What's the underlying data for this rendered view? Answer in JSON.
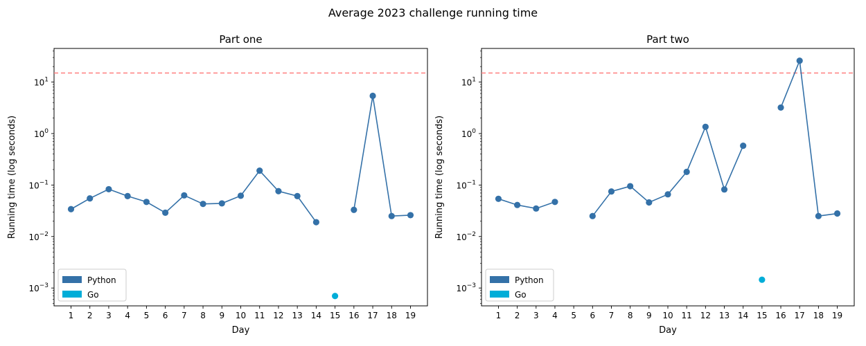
{
  "figure": {
    "title": "Average 2023 challenge running time"
  },
  "chart_data": [
    {
      "type": "line",
      "title": "Part one",
      "xlabel": "Day",
      "ylabel": "Running time (log seconds)",
      "yscale": "log",
      "ylim": [
        0.00045,
        45
      ],
      "yticks": [
        0.001,
        0.01,
        0.1,
        1,
        10
      ],
      "ytick_labels": [
        [
          "10",
          "−3"
        ],
        [
          "10",
          "−2"
        ],
        [
          "10",
          "−1"
        ],
        [
          "10",
          "0"
        ],
        [
          "10",
          "1"
        ]
      ],
      "categories": [
        "1",
        "2",
        "3",
        "4",
        "5",
        "6",
        "7",
        "8",
        "9",
        "10",
        "11",
        "12",
        "13",
        "14",
        "15",
        "16",
        "17",
        "18",
        "19"
      ],
      "reference_line": {
        "y": 15,
        "color": "#ff7f7f",
        "style": "dashed"
      },
      "legend": {
        "placement": "lower-left",
        "entries": [
          "Python",
          "Go"
        ]
      },
      "series": [
        {
          "name": "Python",
          "color": "#3471a8",
          "values": [
            0.034,
            0.055,
            0.083,
            0.061,
            0.047,
            0.029,
            0.063,
            0.043,
            0.044,
            0.062,
            0.19,
            0.076,
            0.061,
            0.019,
            null,
            0.033,
            5.4,
            0.025,
            0.026
          ]
        },
        {
          "name": "Go",
          "color": "#00add8",
          "values": [
            null,
            null,
            null,
            null,
            null,
            null,
            null,
            null,
            null,
            null,
            null,
            null,
            null,
            null,
            0.0007,
            null,
            null,
            null,
            null
          ]
        }
      ]
    },
    {
      "type": "line",
      "title": "Part two",
      "xlabel": "Day",
      "ylabel": "Running time (log seconds)",
      "yscale": "log",
      "ylim": [
        0.00045,
        45
      ],
      "yticks": [
        0.001,
        0.01,
        0.1,
        1,
        10
      ],
      "ytick_labels": [
        [
          "10",
          "−3"
        ],
        [
          "10",
          "−2"
        ],
        [
          "10",
          "−1"
        ],
        [
          "10",
          "0"
        ],
        [
          "10",
          "1"
        ]
      ],
      "categories": [
        "1",
        "2",
        "3",
        "4",
        "5",
        "6",
        "7",
        "8",
        "9",
        "10",
        "11",
        "12",
        "13",
        "14",
        "15",
        "16",
        "17",
        "18",
        "19"
      ],
      "reference_line": {
        "y": 15,
        "color": "#ff7f7f",
        "style": "dashed"
      },
      "legend": {
        "placement": "lower-left",
        "entries": [
          "Python",
          "Go"
        ]
      },
      "series": [
        {
          "name": "Python",
          "color": "#3471a8",
          "values": [
            0.054,
            0.041,
            0.035,
            0.047,
            null,
            0.025,
            0.075,
            0.095,
            0.046,
            0.066,
            0.18,
            1.35,
            0.082,
            0.58,
            null,
            3.2,
            26,
            0.025,
            0.028
          ]
        },
        {
          "name": "Go",
          "color": "#00add8",
          "values": [
            null,
            null,
            null,
            null,
            null,
            null,
            null,
            null,
            null,
            null,
            null,
            null,
            null,
            null,
            0.00145,
            null,
            null,
            null,
            null
          ]
        }
      ]
    }
  ]
}
